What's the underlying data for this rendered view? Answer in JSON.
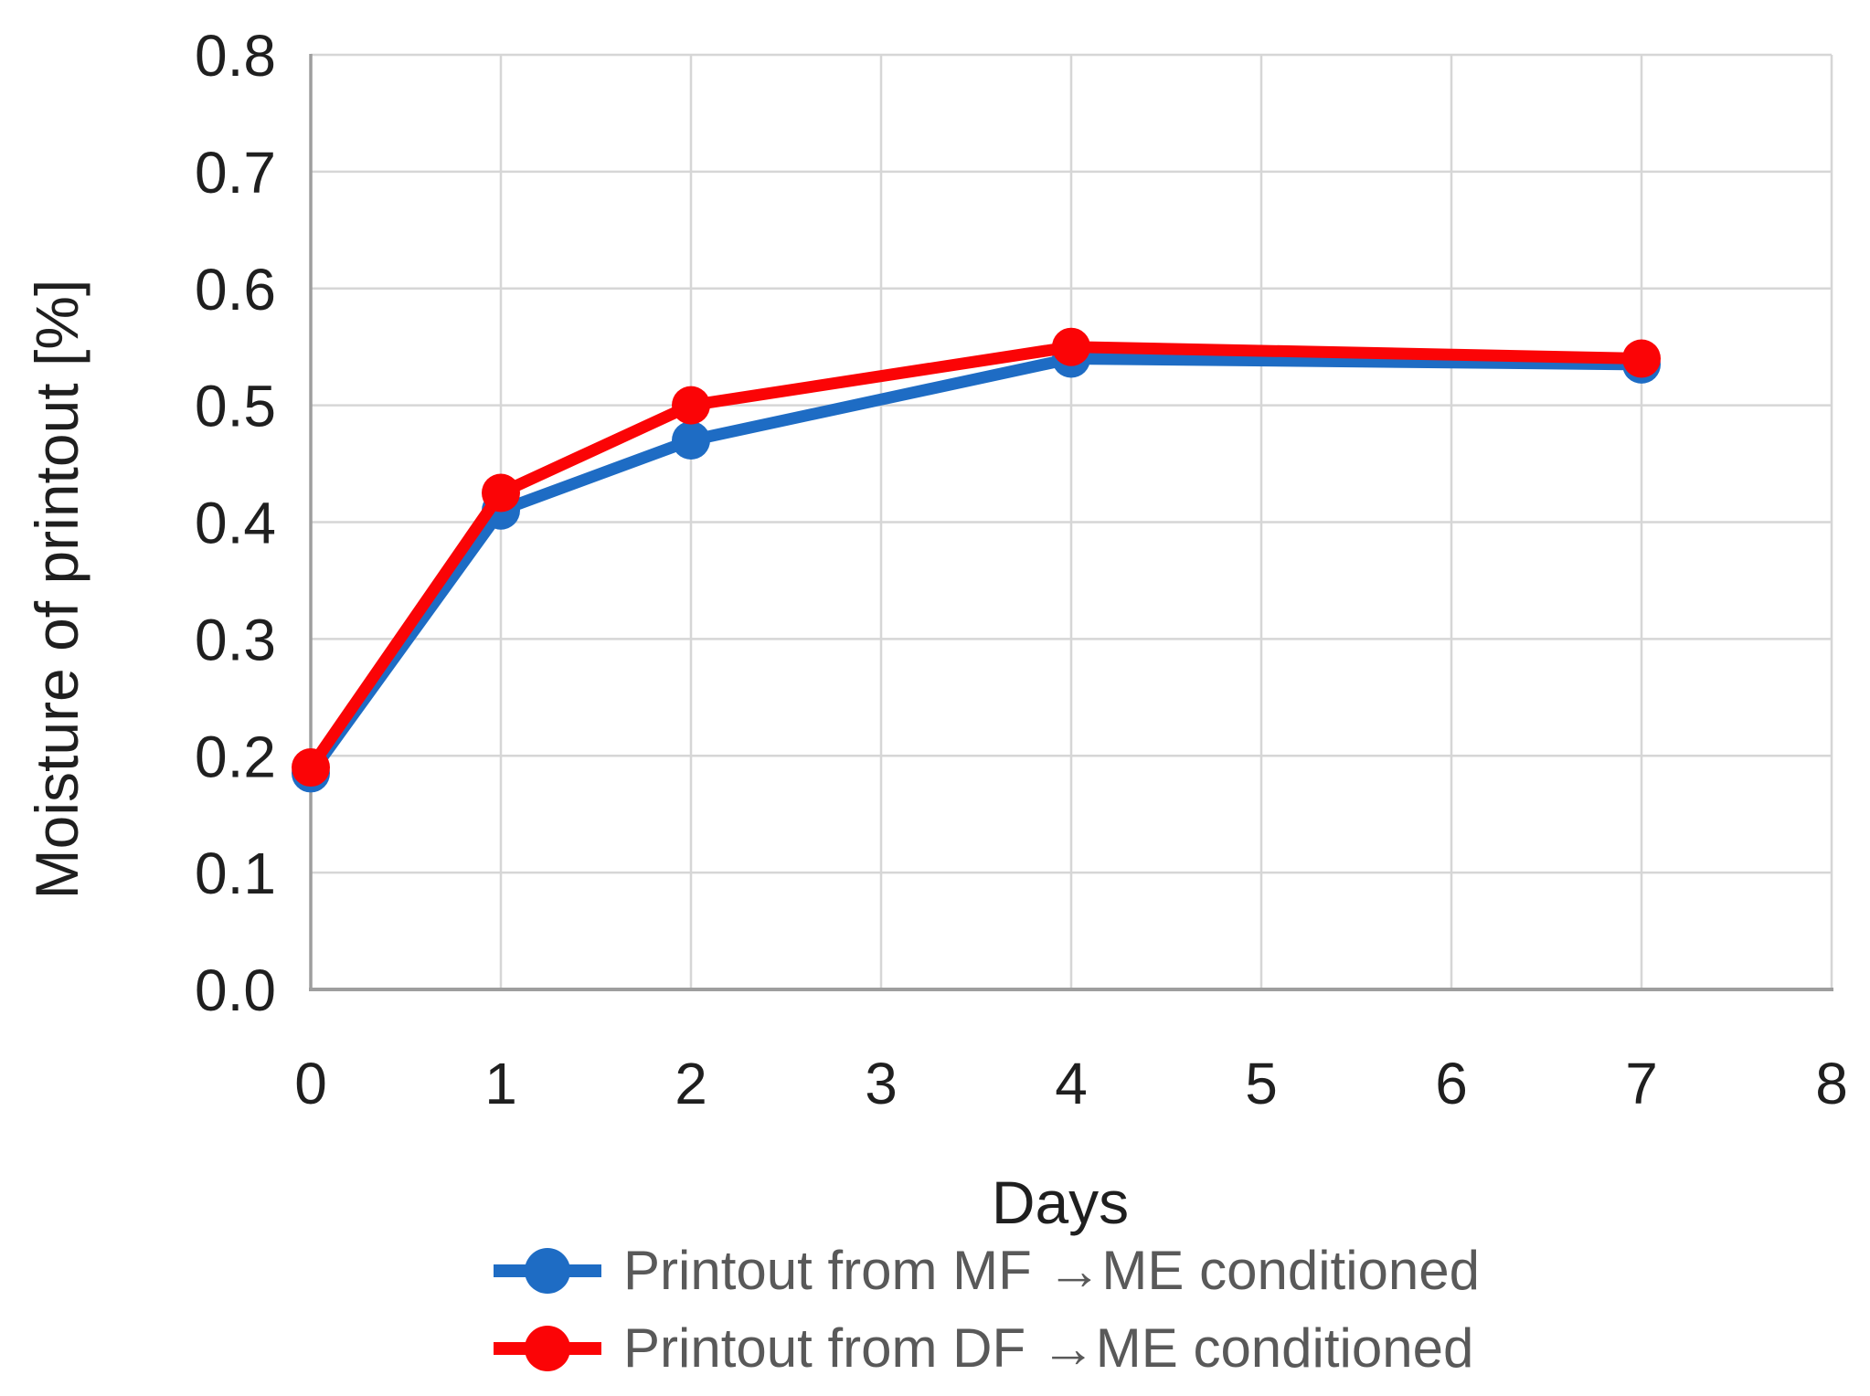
{
  "chart_data": {
    "type": "line",
    "x": [
      0,
      1,
      2,
      4,
      7
    ],
    "series": [
      {
        "name": "Printout from MF →ME conditioned",
        "color": "#1E6CC4",
        "values": [
          0.185,
          0.41,
          0.47,
          0.54,
          0.535
        ]
      },
      {
        "name": "Printout from DF →ME conditioned",
        "color": "#FB0406",
        "values": [
          0.19,
          0.425,
          0.5,
          0.55,
          0.54
        ]
      }
    ],
    "title": "",
    "xlabel": "Days",
    "ylabel": "Moisture of printout [%]",
    "xlim": [
      0,
      8
    ],
    "ylim": [
      0,
      0.8
    ],
    "x_ticks": [
      0,
      1,
      2,
      3,
      4,
      5,
      6,
      7,
      8
    ],
    "y_ticks": [
      "0.0",
      "0.1",
      "0.2",
      "0.3",
      "0.4",
      "0.5",
      "0.6",
      "0.7",
      "0.8"
    ],
    "grid": true,
    "legend_position": "bottom-left",
    "style": {
      "background": "#FFFFFF",
      "grid_color": "#D6D6D6",
      "axis_color": "#9E9E9E",
      "tick_color": "#1F1F1F",
      "title_color": "#1F1F1F",
      "legend_text_color": "#595959",
      "line_width": 13,
      "marker_radius": 21
    }
  }
}
